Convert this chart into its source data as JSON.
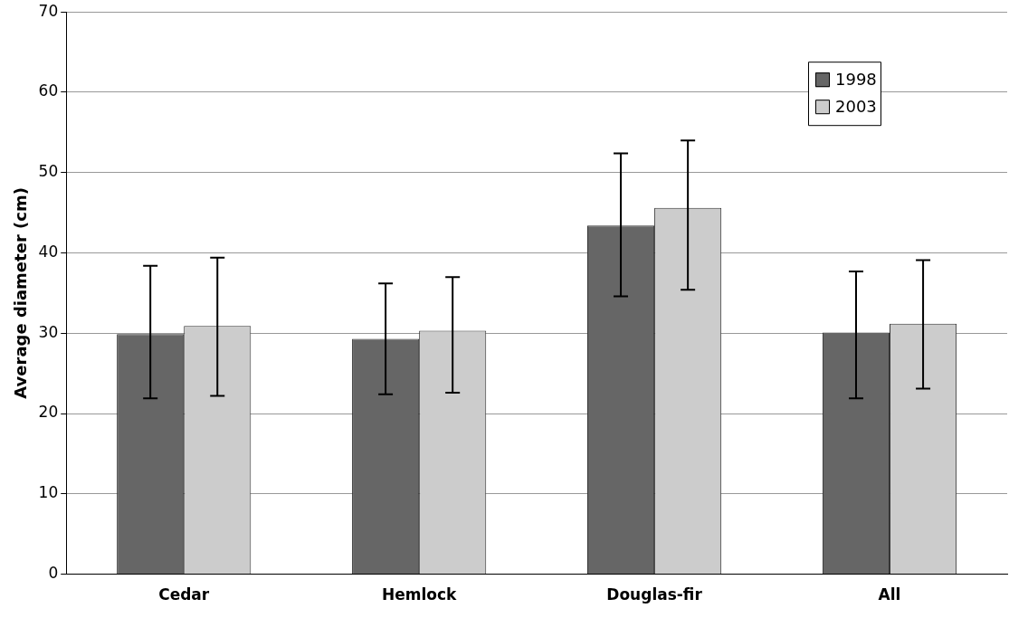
{
  "chart_data": {
    "type": "bar",
    "ylabel": "Average diameter (cm)",
    "categories": [
      "Cedar",
      "Hemlock",
      "Douglas-fir",
      "All"
    ],
    "series": [
      {
        "name": "1998",
        "color": "#666666",
        "values": [
          29.9,
          29.3,
          43.4,
          30.1
        ],
        "errors": [
          [
            21.9,
            38.4
          ],
          [
            22.4,
            36.2
          ],
          [
            34.6,
            52.4
          ],
          [
            21.9,
            37.7
          ]
        ]
      },
      {
        "name": "2003",
        "color": "#cccccc",
        "values": [
          30.9,
          30.3,
          45.6,
          31.2
        ],
        "errors": [
          [
            22.2,
            39.4
          ],
          [
            22.6,
            37.0
          ],
          [
            35.4,
            54.0
          ],
          [
            23.1,
            39.1
          ]
        ]
      }
    ],
    "ylim": [
      0,
      70
    ],
    "yticks": [
      0,
      10,
      20,
      30,
      40,
      50,
      60,
      70
    ],
    "grid": "y",
    "legend": "top right"
  }
}
